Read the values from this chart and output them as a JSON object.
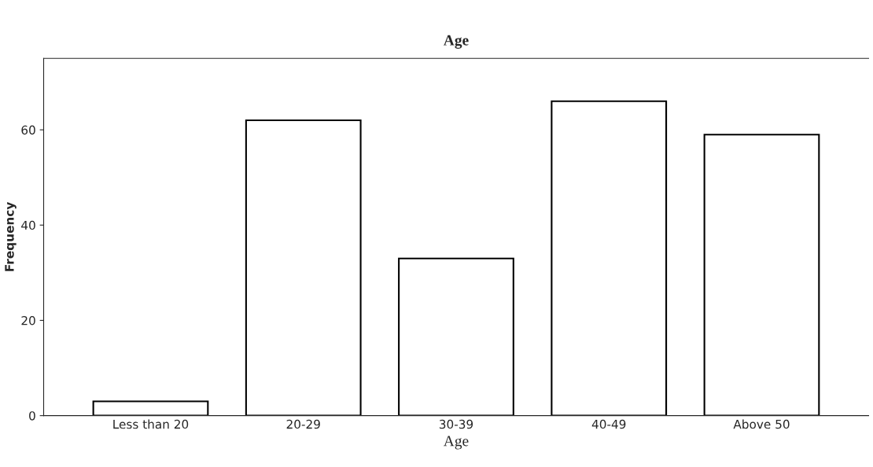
{
  "chart_data": {
    "type": "bar",
    "title": "Age",
    "xlabel": "Age",
    "ylabel": "Frequency",
    "categories": [
      "Less than 20",
      "20-29",
      "30-39",
      "40-49",
      "Above 50"
    ],
    "values": [
      3,
      62,
      33,
      66,
      59
    ],
    "color": "#ffffff",
    "ylim": [
      0,
      75
    ],
    "yticks": [
      0,
      20,
      40,
      60
    ]
  }
}
